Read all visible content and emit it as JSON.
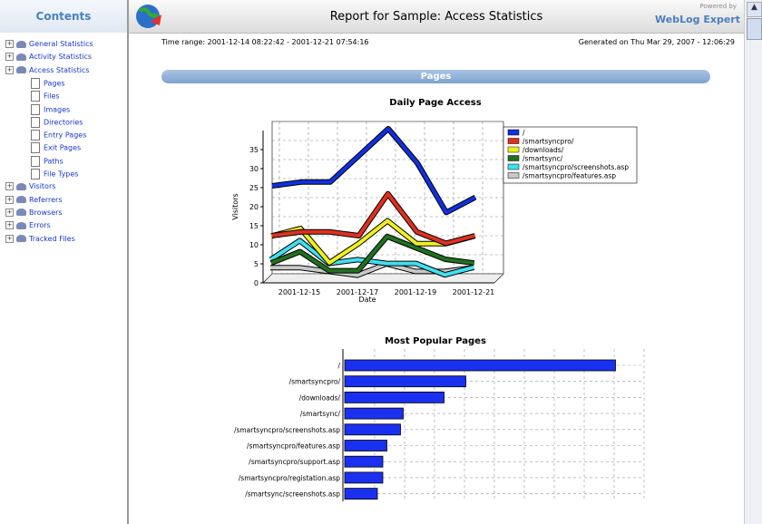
{
  "sidebar": {
    "title": "Contents",
    "items": [
      {
        "label": "General Statistics"
      },
      {
        "label": "Activity Statistics"
      },
      {
        "label": "Access Statistics",
        "children": [
          "Pages",
          "Files",
          "Images",
          "Directories",
          "Entry Pages",
          "Exit Pages",
          "Paths",
          "File Types"
        ]
      },
      {
        "label": "Visitors"
      },
      {
        "label": "Referrers"
      },
      {
        "label": "Browsers"
      },
      {
        "label": "Errors"
      },
      {
        "label": "Tracked Files"
      }
    ]
  },
  "header": {
    "title": "Report for Sample: Access Statistics",
    "powered_by": "Powered by",
    "brand": "WebLog Expert"
  },
  "report": {
    "time_range": "Time range: 2001-12-14 08:22:42 - 2001-12-21 07:54:16",
    "generated": "Generated on Thu Mar 29, 2007 - 12:06:29",
    "section": "Pages"
  },
  "chart_data": [
    {
      "type": "line",
      "title": "Daily Page Access",
      "x_label": "Date",
      "y_label": "Visitors",
      "categories": [
        null,
        "2001-12-15",
        null,
        "2001-12-17",
        null,
        "2001-12-19",
        null,
        "2001-12-21"
      ],
      "ylim": [
        0,
        40
      ],
      "yticks": [
        0,
        5,
        10,
        15,
        20,
        25,
        30,
        35
      ],
      "grid": true,
      "series": [
        {
          "name": "/",
          "color": "#1030e0",
          "values": [
            25,
            26,
            26,
            33,
            40,
            31,
            18,
            22
          ]
        },
        {
          "name": "/smartsyncpro/",
          "color": "#e03020",
          "values": [
            12,
            13,
            13,
            12,
            23,
            13,
            10,
            12
          ]
        },
        {
          "name": "/downloads/",
          "color": "#f0f020",
          "values": [
            12,
            14,
            5,
            10,
            16,
            10,
            10,
            12
          ]
        },
        {
          "name": "/smartsync/",
          "color": "#207020",
          "values": [
            5,
            8,
            3,
            3,
            12,
            9,
            6,
            5
          ]
        },
        {
          "name": "/smartsyncpro/screenshots.asp",
          "color": "#40e0f0",
          "values": [
            6,
            11,
            5,
            6,
            5,
            5,
            2,
            4
          ]
        },
        {
          "name": "/smartsyncpro/features.asp",
          "color": "#c8c8c8",
          "values": [
            4,
            4,
            3,
            2,
            5,
            3,
            3,
            4
          ]
        }
      ]
    },
    {
      "type": "bar",
      "title": "Most Popular Pages",
      "color": "#1a30f0",
      "xlim": [
        0,
        220
      ],
      "categories": [
        "/",
        "/smartsyncpro/",
        "/downloads/",
        "/smartsync/",
        "/smartsyncpro/screenshots.asp",
        "/smartsyncpro/features.asp",
        "/smartsyncpro/support.asp",
        "/smartsyncpro/registation.asp",
        "/smartsync/screenshots.asp"
      ],
      "values": [
        199,
        89,
        73,
        43,
        41,
        31,
        28,
        28,
        24
      ]
    }
  ]
}
